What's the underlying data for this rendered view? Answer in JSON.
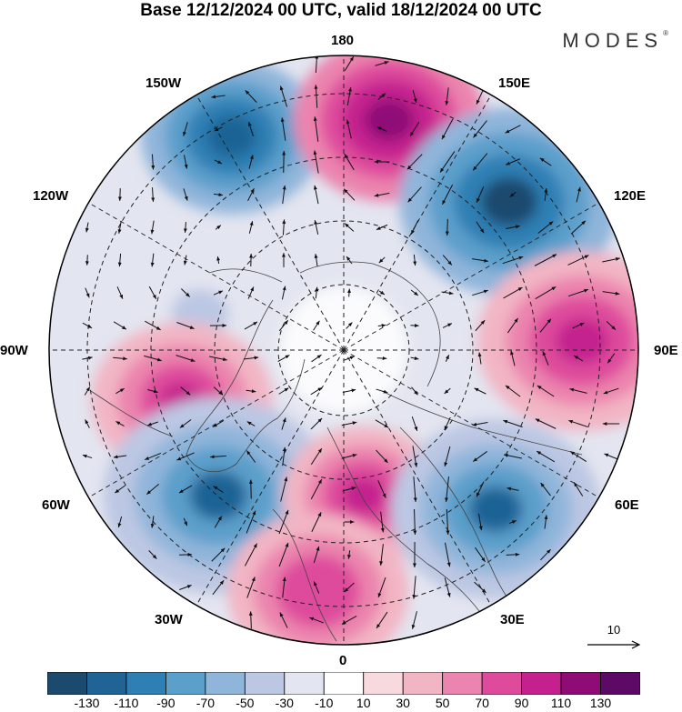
{
  "title": "Base 12/12/2024 00 UTC, valid 18/12/2024 00 UTC",
  "brand": "MODES",
  "brand_mark": "®",
  "longitude_labels": {
    "lon_180": "180",
    "lon_150e": "150E",
    "lon_120e": "120E",
    "lon_90e": "90E",
    "lon_60e": "60E",
    "lon_30e": "30E",
    "lon_0": "0",
    "lon_30w": "30W",
    "lon_60w": "60W",
    "lon_90w": "90W",
    "lon_120w": "120W",
    "lon_150w": "150W"
  },
  "vector_reference": {
    "label": "10",
    "icon": "arrow-right-icon"
  },
  "colorbar": {
    "labels": [
      "-130",
      "-110",
      "-90",
      "-70",
      "-50",
      "-30",
      "-10",
      "10",
      "30",
      "50",
      "70",
      "90",
      "110",
      "130"
    ],
    "colors": [
      "#1b4a6e",
      "#1f6495",
      "#2d7fb4",
      "#5b9fcb",
      "#90b5da",
      "#bcc7e3",
      "#e3e5f0",
      "#ffffff",
      "#f8d9dd",
      "#f2b5c4",
      "#eb84ae",
      "#de4b9c",
      "#c4218e",
      "#8f0c77",
      "#5d0a67"
    ]
  },
  "anomaly_centers": [
    {
      "sign": "negative",
      "value": -120,
      "region": "Bering Sea / Alaska (150W)"
    },
    {
      "sign": "positive",
      "value": 120,
      "region": "Chukotka / Arctic near 180"
    },
    {
      "sign": "negative",
      "value": -130,
      "region": "Eastern Siberia (120E)"
    },
    {
      "sign": "positive",
      "value": 110,
      "region": "Central Siberia (90E)"
    },
    {
      "sign": "negative",
      "value": -40,
      "region": "Northern Canada (100W)"
    },
    {
      "sign": "positive",
      "value": 100,
      "region": "Eastern USA (75W)"
    },
    {
      "sign": "negative",
      "value": -110,
      "region": "North Atlantic (45W)"
    },
    {
      "sign": "positive",
      "value": 110,
      "region": "Scandinavia (10E)"
    },
    {
      "sign": "positive",
      "value": 90,
      "region": "Western Europe / NE Atlantic (0)"
    },
    {
      "sign": "negative",
      "value": -110,
      "region": "Western Russia (45E)"
    }
  ]
}
